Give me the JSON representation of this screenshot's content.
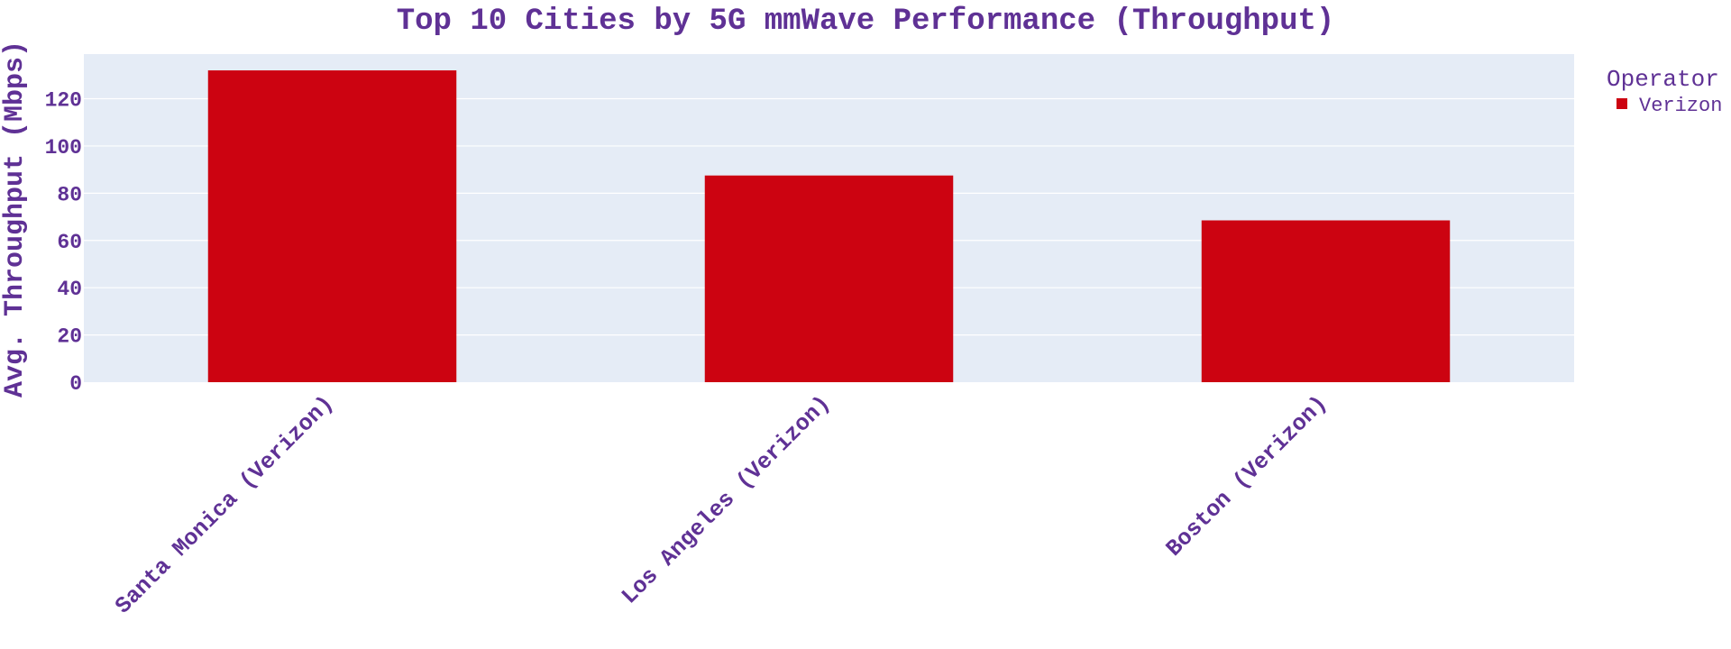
{
  "chart_data": {
    "type": "bar",
    "title": "Top 10 Cities by 5G mmWave Performance (Throughput)",
    "xlabel": "",
    "ylabel": "Avg. Throughput (Mbps)",
    "categories": [
      "Santa Monica (Verizon)",
      "Los Angeles (Verizon)",
      "Boston (Verizon)"
    ],
    "series": [
      {
        "name": "Verizon",
        "values": [
          132,
          87.5,
          68.5
        ],
        "color": "#cc0311"
      }
    ],
    "yticks": [
      0,
      20,
      40,
      60,
      80,
      100,
      120
    ],
    "ylim": [
      0,
      138.9
    ],
    "grid": true,
    "legend": {
      "title": "Operator",
      "placement": "top-right"
    },
    "colors": {
      "text": "#5f3195",
      "plot_bg": "#e5ecf6",
      "grid": "#ffffff",
      "bar": "#cc0311"
    }
  }
}
